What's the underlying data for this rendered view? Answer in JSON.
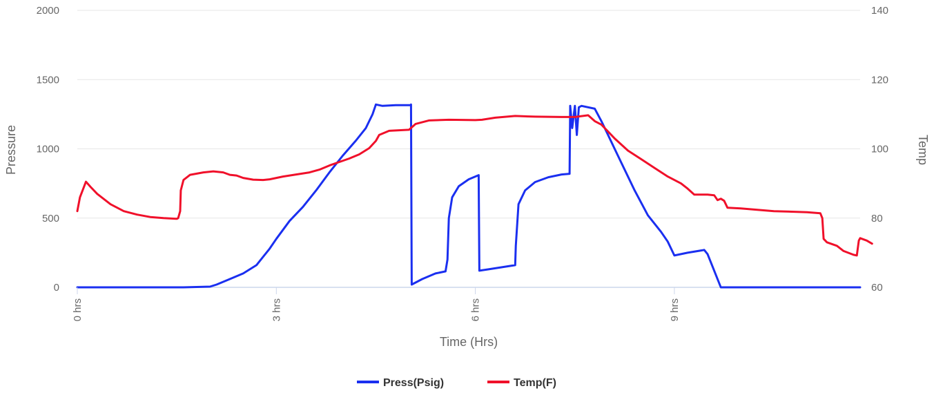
{
  "chart_data": {
    "type": "line",
    "title": "",
    "xlabel": "Time (Hrs)",
    "ylabel_left": "Pressure",
    "ylabel_right": "Temp",
    "xlim": [
      0,
      11.8
    ],
    "ylim_left": [
      0,
      2000
    ],
    "ylim_right": [
      60,
      140
    ],
    "x_ticks": [
      {
        "value": 0,
        "label": "0 hrs"
      },
      {
        "value": 3,
        "label": "3 hrs"
      },
      {
        "value": 6,
        "label": "6 hrs"
      },
      {
        "value": 9,
        "label": "9 hrs"
      }
    ],
    "y_ticks_left": [
      0,
      500,
      1000,
      1500,
      2000
    ],
    "y_ticks_right": [
      60,
      80,
      100,
      120,
      140
    ],
    "grid": true,
    "legend_position": "bottom",
    "series": [
      {
        "name": "Press(Psig)",
        "axis": "left",
        "color": "#1a2ff0",
        "points": [
          [
            0,
            0
          ],
          [
            1.6,
            0
          ],
          [
            2.0,
            5
          ],
          [
            2.1,
            20
          ],
          [
            2.3,
            60
          ],
          [
            2.5,
            100
          ],
          [
            2.7,
            160
          ],
          [
            2.9,
            280
          ],
          [
            3.0,
            350
          ],
          [
            3.2,
            480
          ],
          [
            3.4,
            580
          ],
          [
            3.6,
            700
          ],
          [
            3.8,
            830
          ],
          [
            4.0,
            950
          ],
          [
            4.2,
            1060
          ],
          [
            4.35,
            1150
          ],
          [
            4.45,
            1250
          ],
          [
            4.5,
            1320
          ],
          [
            4.6,
            1310
          ],
          [
            4.8,
            1315
          ],
          [
            5.02,
            1315
          ],
          [
            5.03,
            1320
          ],
          [
            5.04,
            20
          ],
          [
            5.2,
            60
          ],
          [
            5.4,
            100
          ],
          [
            5.55,
            115
          ],
          [
            5.58,
            200
          ],
          [
            5.6,
            500
          ],
          [
            5.65,
            650
          ],
          [
            5.75,
            730
          ],
          [
            5.9,
            780
          ],
          [
            6.05,
            810
          ],
          [
            6.06,
            120
          ],
          [
            6.2,
            130
          ],
          [
            6.4,
            145
          ],
          [
            6.6,
            160
          ],
          [
            6.61,
            300
          ],
          [
            6.65,
            600
          ],
          [
            6.75,
            700
          ],
          [
            6.9,
            760
          ],
          [
            7.1,
            795
          ],
          [
            7.3,
            815
          ],
          [
            7.42,
            820
          ],
          [
            7.43,
            1310
          ],
          [
            7.46,
            1150
          ],
          [
            7.5,
            1310
          ],
          [
            7.53,
            1100
          ],
          [
            7.56,
            1300
          ],
          [
            7.6,
            1310
          ],
          [
            7.8,
            1290
          ],
          [
            7.9,
            1200
          ],
          [
            8.0,
            1100
          ],
          [
            8.1,
            1000
          ],
          [
            8.2,
            900
          ],
          [
            8.4,
            700
          ],
          [
            8.6,
            520
          ],
          [
            8.8,
            400
          ],
          [
            8.9,
            330
          ],
          [
            9.0,
            230
          ],
          [
            9.2,
            250
          ],
          [
            9.45,
            270
          ],
          [
            9.5,
            240
          ],
          [
            9.7,
            0
          ],
          [
            11.8,
            0
          ]
        ]
      },
      {
        "name": "Temp(F)",
        "axis": "right",
        "color": "#f0102a",
        "points": [
          [
            0,
            82
          ],
          [
            0.04,
            86
          ],
          [
            0.08,
            88
          ],
          [
            0.13,
            90.5
          ],
          [
            0.2,
            89
          ],
          [
            0.3,
            87
          ],
          [
            0.5,
            84
          ],
          [
            0.7,
            82
          ],
          [
            0.9,
            81
          ],
          [
            1.1,
            80.3
          ],
          [
            1.3,
            80
          ],
          [
            1.5,
            79.8
          ],
          [
            1.52,
            80
          ],
          [
            1.55,
            82
          ],
          [
            1.56,
            88
          ],
          [
            1.6,
            91
          ],
          [
            1.7,
            92.5
          ],
          [
            1.9,
            93.2
          ],
          [
            2.05,
            93.5
          ],
          [
            2.2,
            93.2
          ],
          [
            2.3,
            92.5
          ],
          [
            2.4,
            92.3
          ],
          [
            2.5,
            91.6
          ],
          [
            2.65,
            91.1
          ],
          [
            2.8,
            91
          ],
          [
            2.9,
            91.2
          ],
          [
            3.0,
            91.6
          ],
          [
            3.1,
            92
          ],
          [
            3.3,
            92.6
          ],
          [
            3.5,
            93.2
          ],
          [
            3.65,
            94
          ],
          [
            3.8,
            95.2
          ],
          [
            3.95,
            96.2
          ],
          [
            4.1,
            97.2
          ],
          [
            4.25,
            98.4
          ],
          [
            4.4,
            100.2
          ],
          [
            4.5,
            102.3
          ],
          [
            4.55,
            104
          ],
          [
            4.7,
            105.2
          ],
          [
            5.0,
            105.5
          ],
          [
            5.1,
            107.2
          ],
          [
            5.3,
            108.2
          ],
          [
            5.6,
            108.4
          ],
          [
            6.0,
            108.3
          ],
          [
            6.1,
            108.4
          ],
          [
            6.3,
            109
          ],
          [
            6.6,
            109.5
          ],
          [
            6.9,
            109.3
          ],
          [
            7.3,
            109.2
          ],
          [
            7.5,
            109.2
          ],
          [
            7.7,
            109.7
          ],
          [
            7.8,
            108
          ],
          [
            7.9,
            107
          ],
          [
            8.0,
            105
          ],
          [
            8.1,
            103
          ],
          [
            8.3,
            99.5
          ],
          [
            8.5,
            97
          ],
          [
            8.7,
            94.5
          ],
          [
            8.9,
            92
          ],
          [
            9.1,
            90
          ],
          [
            9.2,
            88.5
          ],
          [
            9.3,
            86.8
          ],
          [
            9.5,
            86.8
          ],
          [
            9.6,
            86.6
          ],
          [
            9.65,
            85.2
          ],
          [
            9.7,
            85.6
          ],
          [
            9.75,
            85
          ],
          [
            9.8,
            83
          ],
          [
            10.0,
            82.8
          ],
          [
            10.5,
            82
          ],
          [
            11.0,
            81.7
          ],
          [
            11.2,
            81.4
          ],
          [
            11.23,
            80
          ],
          [
            11.25,
            74
          ],
          [
            11.3,
            73
          ],
          [
            11.45,
            72
          ],
          [
            11.55,
            70.5
          ],
          [
            11.7,
            69.4
          ],
          [
            11.75,
            69.2
          ],
          [
            11.78,
            73.5
          ],
          [
            11.8,
            74.2
          ],
          [
            11.9,
            73.5
          ],
          [
            11.98,
            72.6
          ]
        ]
      }
    ]
  }
}
